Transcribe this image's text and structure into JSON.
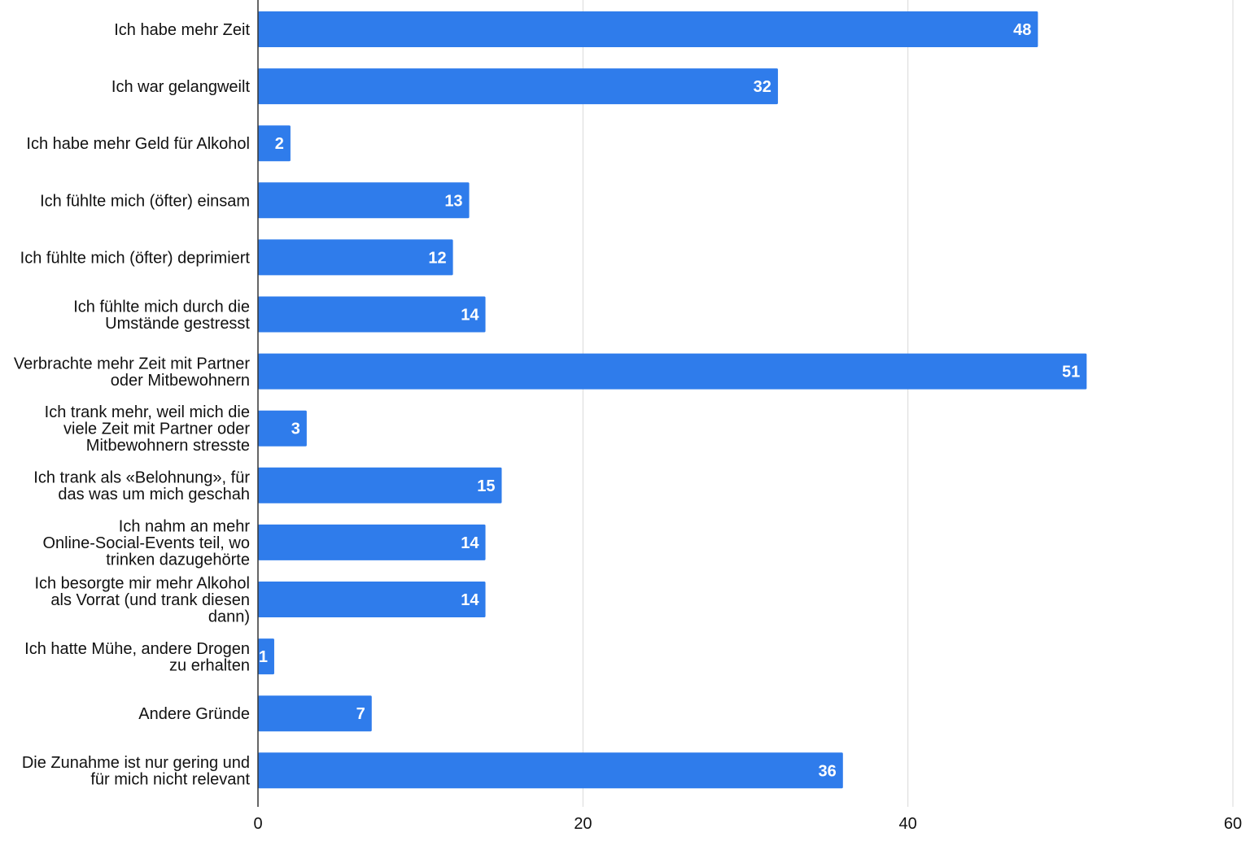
{
  "chart_data": {
    "type": "bar",
    "orientation": "horizontal",
    "categories": [
      [
        "Ich habe mehr Zeit"
      ],
      [
        "Ich war gelangweilt"
      ],
      [
        "Ich habe mehr Geld für Alkohol"
      ],
      [
        "Ich fühlte mich (öfter) einsam"
      ],
      [
        "Ich fühlte mich (öfter) deprimiert"
      ],
      [
        "Ich fühlte mich durch die",
        "Umstände gestresst"
      ],
      [
        "Verbrachte mehr Zeit mit Partner",
        "oder Mitbewohnern"
      ],
      [
        "Ich trank mehr, weil mich die",
        "viele Zeit mit Partner oder",
        "Mitbewohnern stresste"
      ],
      [
        "Ich trank als «Belohnung», für",
        "das was um mich geschah"
      ],
      [
        "Ich nahm an mehr",
        "Online-Social-Events teil, wo",
        "trinken dazugehörte"
      ],
      [
        "Ich besorgte mir mehr Alkohol",
        "als Vorrat (und trank diesen",
        "dann)"
      ],
      [
        "Ich hatte Mühe, andere Drogen",
        "zu erhalten"
      ],
      [
        "Andere Gründe"
      ],
      [
        "Die Zunahme ist nur gering und",
        "für mich nicht relevant"
      ]
    ],
    "values": [
      48,
      32,
      2,
      13,
      12,
      14,
      51,
      3,
      15,
      14,
      14,
      1,
      7,
      36
    ],
    "xlim": [
      0,
      60
    ],
    "xticks": [
      0,
      20,
      40,
      60
    ],
    "grid": true,
    "data_labels": true,
    "bar_color": "#2f7ceb",
    "label_color": "#ffffff"
  }
}
